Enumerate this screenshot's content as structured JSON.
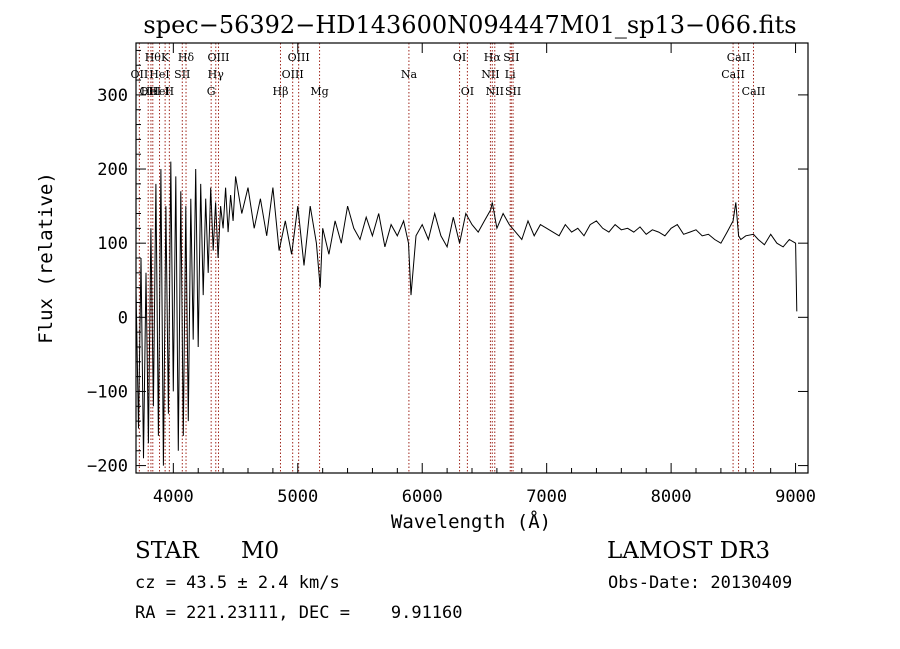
{
  "chart_data": {
    "type": "line",
    "title": "spec−56392−HD143600N094447M01_sp13−066.fits",
    "xlabel": "Wavelength (Å)",
    "ylabel": "Flux (relative)",
    "xlim": [
      3700,
      9100
    ],
    "ylim": [
      -210,
      370
    ],
    "xticks": [
      4000,
      5000,
      6000,
      7000,
      8000,
      9000
    ],
    "yticks": [
      -200,
      -100,
      0,
      100,
      200,
      300
    ],
    "xtick_labels": [
      "4000",
      "5000",
      "6000",
      "7000",
      "8000",
      "9000"
    ],
    "ytick_labels": [
      "−200",
      "−100",
      "0",
      "100",
      "200",
      "300"
    ],
    "grid": false,
    "line_color": "#000000",
    "marker_color": "#a0281e",
    "series": [
      {
        "x": [
          3700,
          3720,
          3740,
          3760,
          3780,
          3800,
          3820,
          3840,
          3860,
          3880,
          3900,
          3920,
          3940,
          3960,
          3980,
          4000,
          4020,
          4040,
          4060,
          4080,
          4100,
          4120,
          4140,
          4160,
          4180,
          4200,
          4220,
          4240,
          4260,
          4280,
          4300,
          4320,
          4340,
          4360,
          4380,
          4400,
          4420,
          4440,
          4460,
          4480,
          4500,
          4550,
          4600,
          4650,
          4700,
          4750,
          4800,
          4850,
          4900,
          4950,
          5000,
          5050,
          5100,
          5150,
          5180,
          5200,
          5250,
          5300,
          5350,
          5400,
          5450,
          5500,
          5550,
          5600,
          5650,
          5700,
          5750,
          5800,
          5850,
          5890,
          5910,
          5950,
          6000,
          6050,
          6100,
          6150,
          6200,
          6250,
          6300,
          6350,
          6400,
          6450,
          6500,
          6550,
          6563,
          6600,
          6650,
          6700,
          6750,
          6800,
          6850,
          6900,
          6950,
          7000,
          7050,
          7100,
          7150,
          7200,
          7250,
          7300,
          7350,
          7400,
          7450,
          7500,
          7550,
          7600,
          7650,
          7700,
          7750,
          7800,
          7850,
          7900,
          7950,
          8000,
          8050,
          8100,
          8150,
          8200,
          8250,
          8300,
          8350,
          8400,
          8450,
          8498,
          8520,
          8542,
          8560,
          8600,
          8662,
          8700,
          8750,
          8800,
          8850,
          8900,
          8950,
          9000,
          9010
        ],
        "y": [
          40,
          -150,
          80,
          -190,
          60,
          -170,
          120,
          -120,
          180,
          -160,
          200,
          -200,
          150,
          -130,
          210,
          -100,
          190,
          -180,
          170,
          -160,
          150,
          -140,
          160,
          -30,
          200,
          -40,
          180,
          30,
          160,
          60,
          175,
          90,
          155,
          80,
          150,
          120,
          175,
          115,
          165,
          130,
          190,
          140,
          175,
          120,
          160,
          110,
          175,
          90,
          130,
          85,
          150,
          70,
          150,
          100,
          40,
          120,
          85,
          130,
          100,
          150,
          120,
          105,
          135,
          110,
          140,
          95,
          125,
          110,
          130,
          100,
          30,
          110,
          125,
          105,
          140,
          110,
          95,
          135,
          100,
          140,
          125,
          115,
          130,
          145,
          155,
          120,
          140,
          125,
          115,
          105,
          130,
          110,
          125,
          120,
          115,
          110,
          125,
          115,
          120,
          110,
          125,
          130,
          120,
          115,
          125,
          118,
          120,
          115,
          122,
          112,
          118,
          115,
          110,
          120,
          125,
          112,
          115,
          118,
          110,
          112,
          105,
          100,
          115,
          130,
          155,
          110,
          105,
          110,
          112,
          105,
          98,
          112,
          100,
          95,
          105,
          100,
          8
        ]
      }
    ],
    "line_markers": [
      {
        "wl": 3727,
        "rows": [
          1
        ],
        "label": "OII"
      },
      {
        "wl": 3798,
        "rows": [
          2
        ],
        "label": "OII"
      },
      {
        "wl": 3820,
        "rows": [
          2
        ],
        "label": "HeI"
      },
      {
        "wl": 3835,
        "rows": [
          0
        ],
        "label": "Hθ"
      },
      {
        "wl": 3889,
        "rows": [
          1,
          2
        ],
        "label": "HeI"
      },
      {
        "wl": 3934,
        "rows": [
          0
        ],
        "label": "K"
      },
      {
        "wl": 3968,
        "rows": [
          2
        ],
        "label": "H"
      },
      {
        "wl": 4072,
        "rows": [
          1
        ],
        "label": "SII"
      },
      {
        "wl": 4102,
        "rows": [
          0
        ],
        "label": "Hδ"
      },
      {
        "wl": 4304,
        "rows": [
          2
        ],
        "label": "G"
      },
      {
        "wl": 4341,
        "rows": [
          1
        ],
        "label": "Hγ"
      },
      {
        "wl": 4363,
        "rows": [
          0
        ],
        "label": "OIII"
      },
      {
        "wl": 4861,
        "rows": [
          2
        ],
        "label": "Hβ"
      },
      {
        "wl": 4959,
        "rows": [
          1
        ],
        "label": "OIII"
      },
      {
        "wl": 5007,
        "rows": [
          0
        ],
        "label": "OIII"
      },
      {
        "wl": 5175,
        "rows": [
          2
        ],
        "label": "Mg"
      },
      {
        "wl": 5893,
        "rows": [
          1
        ],
        "label": "Na"
      },
      {
        "wl": 6300,
        "rows": [
          0
        ],
        "label": "OI"
      },
      {
        "wl": 6363,
        "rows": [
          2
        ],
        "label": "OI"
      },
      {
        "wl": 6548,
        "rows": [
          1
        ],
        "label": "NII"
      },
      {
        "wl": 6563,
        "rows": [
          0
        ],
        "label": "Hα"
      },
      {
        "wl": 6583,
        "rows": [
          2
        ],
        "label": "NII"
      },
      {
        "wl": 6707,
        "rows": [
          1
        ],
        "label": "Li"
      },
      {
        "wl": 6716,
        "rows": [
          0
        ],
        "label": "SII"
      },
      {
        "wl": 6730,
        "rows": [
          2
        ],
        "label": "SII"
      },
      {
        "wl": 8498,
        "rows": [
          1
        ],
        "label": "CaII"
      },
      {
        "wl": 8542,
        "rows": [
          0
        ],
        "label": "CaII"
      },
      {
        "wl": 8662,
        "rows": [
          2
        ],
        "label": "CaII"
      }
    ]
  },
  "info": {
    "object_class": "STAR",
    "subclass": "M0",
    "survey": "LAMOST DR3",
    "cz": "cz = 43.5 ± 2.4 km/s",
    "obs_date": "Obs-Date: 20130409",
    "coords": "RA = 221.23111, DEC =    9.91160"
  }
}
